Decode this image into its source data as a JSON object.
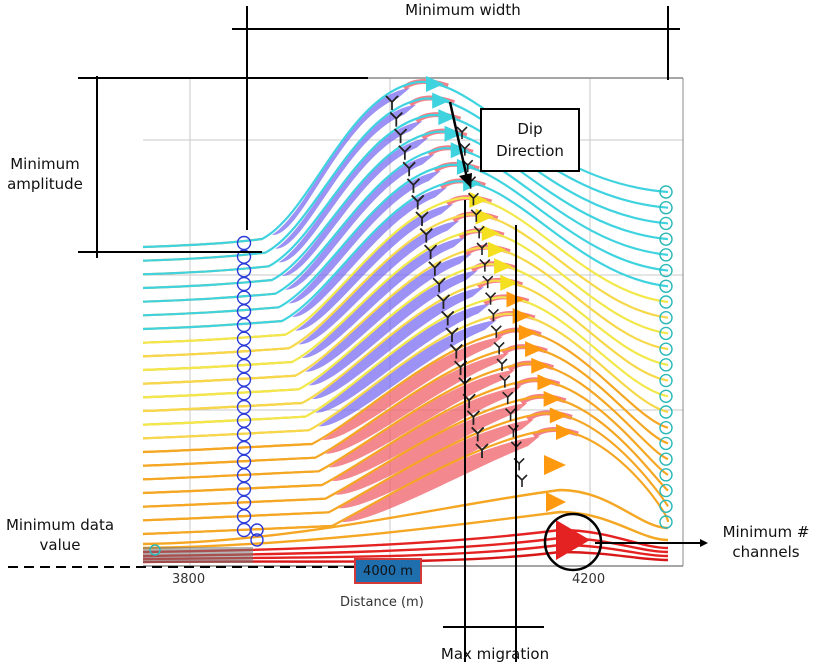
{
  "annotations": {
    "minimum_width": "Minimum width",
    "minimum_amplitude_line1": "Minimum",
    "minimum_amplitude_line2": "amplitude",
    "minimum_data_value_line1": "Minimum data",
    "minimum_data_value_line2": "value",
    "minimum_channels_line1": "Minimum #",
    "minimum_channels_line2": "channels",
    "dip_direction_line1": "Dip",
    "dip_direction_line2": "Direction",
    "max_migration": "Max migration"
  },
  "axis": {
    "x_label": "Distance (m)",
    "ticks": [
      "3800",
      "4000",
      "4200"
    ]
  },
  "badge": {
    "label": "4000 m"
  },
  "colors": {
    "trace_orange": "#f5a623",
    "trace_cyan": "#3fd3e0",
    "trace_yellow": "#f2e84a",
    "trace_red": "#e52222",
    "fill_blue": "#7b6cf0",
    "fill_red": "#f0606a",
    "marker_blue": "#2a3ad8",
    "marker_teal": "#2ab8b8"
  }
}
